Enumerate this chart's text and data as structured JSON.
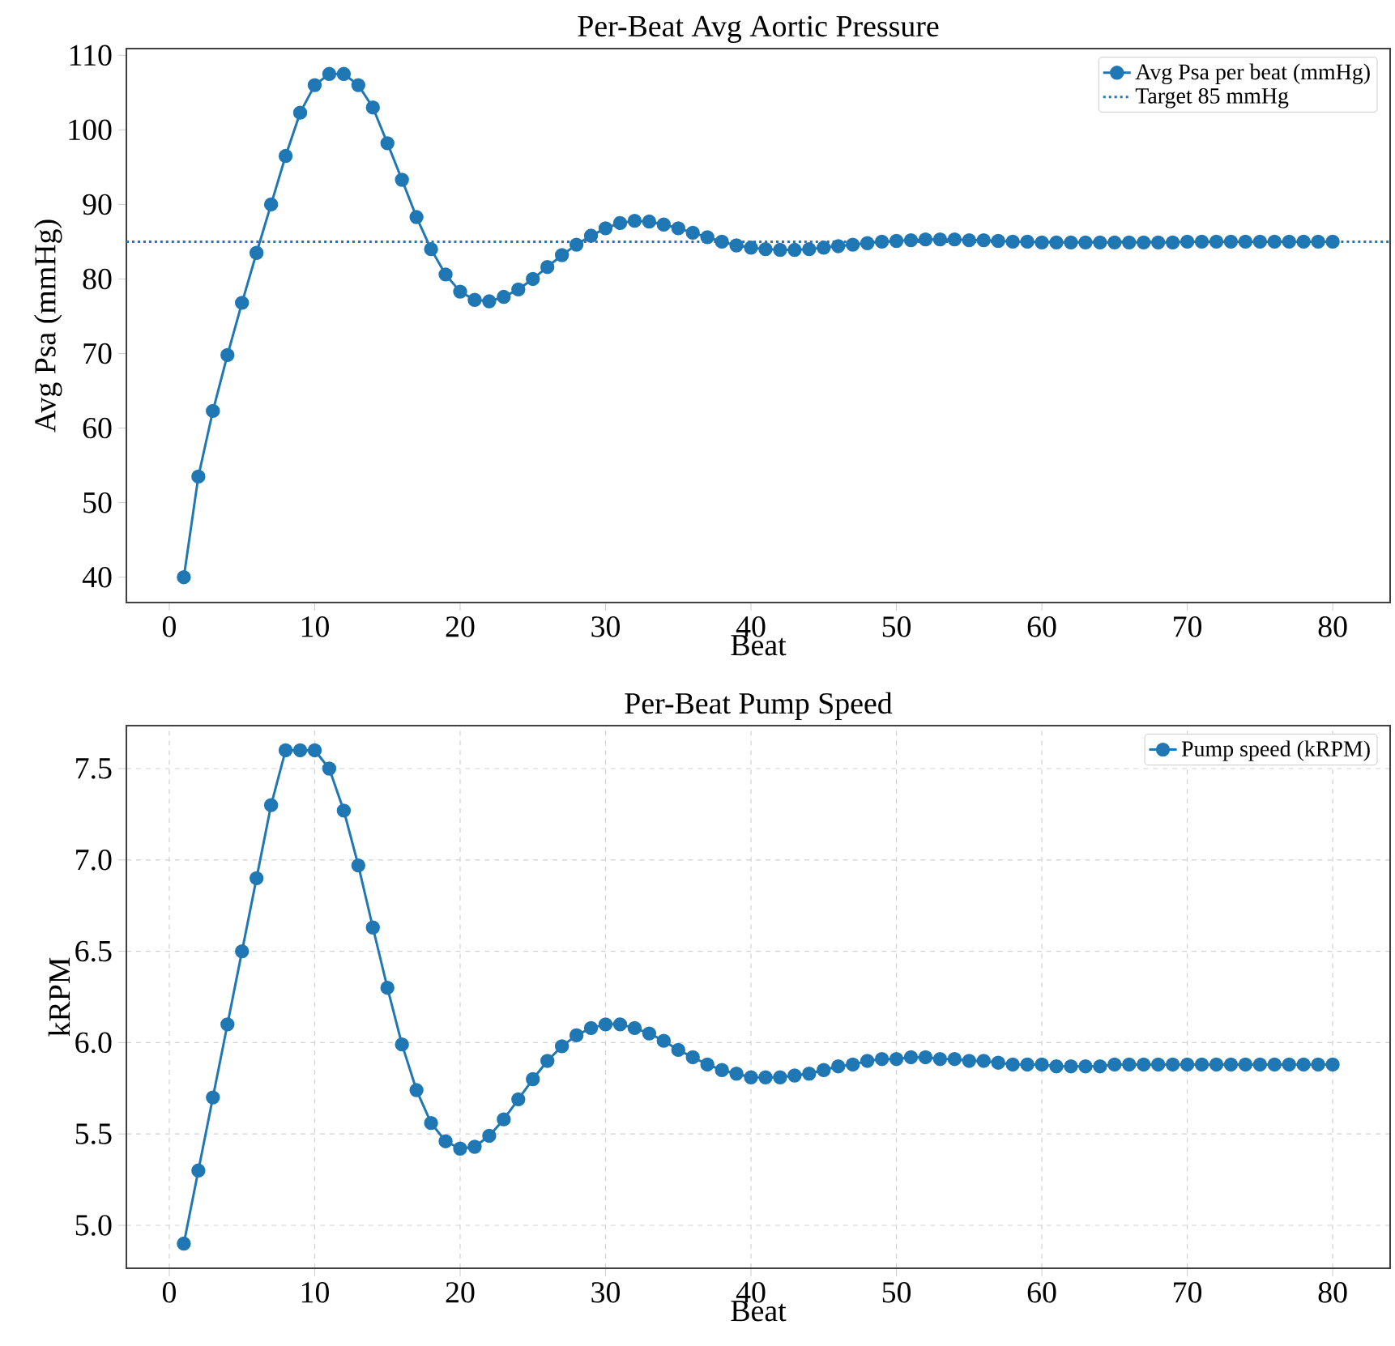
{
  "chart_data": [
    {
      "type": "line",
      "title": "Per-Beat Avg Aortic Pressure",
      "xlabel": "Beat",
      "ylabel": "Avg Psa (mmHg)",
      "x": [
        1,
        2,
        3,
        4,
        5,
        6,
        7,
        8,
        9,
        10,
        11,
        12,
        13,
        14,
        15,
        16,
        17,
        18,
        19,
        20,
        21,
        22,
        23,
        24,
        25,
        26,
        27,
        28,
        29,
        30,
        31,
        32,
        33,
        34,
        35,
        36,
        37,
        38,
        39,
        40,
        41,
        42,
        43,
        44,
        45,
        46,
        47,
        48,
        49,
        50,
        51,
        52,
        53,
        54,
        55,
        56,
        57,
        58,
        59,
        60,
        61,
        62,
        63,
        64,
        65,
        66,
        67,
        68,
        69,
        70,
        71,
        72,
        73,
        74,
        75,
        76,
        77,
        78,
        79,
        80
      ],
      "series": [
        {
          "name": "Avg Psa per beat (mmHg)",
          "color": "#1f77b4",
          "values": [
            40,
            53.5,
            62.3,
            69.8,
            76.8,
            83.5,
            90,
            96.5,
            102.3,
            106,
            107.5,
            107.5,
            106,
            103,
            98.2,
            93.3,
            88.3,
            84,
            80.6,
            78.3,
            77.2,
            77,
            77.6,
            78.6,
            80,
            81.6,
            83.2,
            84.6,
            85.8,
            86.8,
            87.5,
            87.8,
            87.7,
            87.3,
            86.8,
            86.2,
            85.6,
            85,
            84.5,
            84.2,
            84,
            83.9,
            83.9,
            84,
            84.2,
            84.4,
            84.6,
            84.8,
            85,
            85.1,
            85.2,
            85.3,
            85.3,
            85.3,
            85.2,
            85.2,
            85.1,
            85,
            85,
            84.9,
            84.9,
            84.9,
            84.9,
            84.9,
            84.9,
            84.9,
            84.9,
            84.9,
            84.9,
            85,
            85,
            85,
            85,
            85,
            85,
            85,
            85,
            85,
            85,
            85
          ]
        }
      ],
      "ref_lines": [
        {
          "axis": "y",
          "value": 85,
          "label": "Target 85 mmHg",
          "color": "#1f77b4",
          "line_style": "dotted"
        }
      ],
      "xlim": [
        -2.95,
        83.95
      ],
      "ylim": [
        36.6,
        110.9
      ],
      "xticks": [
        0,
        10,
        20,
        30,
        40,
        50,
        60,
        70,
        80
      ],
      "yticks": [
        40,
        50,
        60,
        70,
        80,
        90,
        100,
        110
      ],
      "grid": false,
      "legend": "top right",
      "marker": "circle",
      "line_style": "solid"
    },
    {
      "type": "line",
      "title": "Per-Beat Pump Speed",
      "xlabel": "Beat",
      "ylabel": "kRPM",
      "x": [
        1,
        2,
        3,
        4,
        5,
        6,
        7,
        8,
        9,
        10,
        11,
        12,
        13,
        14,
        15,
        16,
        17,
        18,
        19,
        20,
        21,
        22,
        23,
        24,
        25,
        26,
        27,
        28,
        29,
        30,
        31,
        32,
        33,
        34,
        35,
        36,
        37,
        38,
        39,
        40,
        41,
        42,
        43,
        44,
        45,
        46,
        47,
        48,
        49,
        50,
        51,
        52,
        53,
        54,
        55,
        56,
        57,
        58,
        59,
        60,
        61,
        62,
        63,
        64,
        65,
        66,
        67,
        68,
        69,
        70,
        71,
        72,
        73,
        74,
        75,
        76,
        77,
        78,
        79,
        80
      ],
      "series": [
        {
          "name": "Pump speed (kRPM)",
          "color": "#1f77b4",
          "values": [
            4.9,
            5.3,
            5.7,
            6.1,
            6.5,
            6.9,
            7.3,
            7.6,
            7.6,
            7.6,
            7.5,
            7.27,
            6.97,
            6.63,
            6.3,
            5.99,
            5.74,
            5.56,
            5.46,
            5.42,
            5.43,
            5.49,
            5.58,
            5.69,
            5.8,
            5.9,
            5.98,
            6.04,
            6.08,
            6.1,
            6.1,
            6.08,
            6.05,
            6.01,
            5.96,
            5.92,
            5.88,
            5.85,
            5.83,
            5.81,
            5.81,
            5.81,
            5.82,
            5.83,
            5.85,
            5.87,
            5.88,
            5.9,
            5.91,
            5.91,
            5.92,
            5.92,
            5.91,
            5.91,
            5.9,
            5.9,
            5.89,
            5.88,
            5.88,
            5.88,
            5.87,
            5.87,
            5.87,
            5.87,
            5.88,
            5.88,
            5.88,
            5.88,
            5.88,
            5.88,
            5.88,
            5.88,
            5.88,
            5.88,
            5.88,
            5.88,
            5.88,
            5.88,
            5.88,
            5.88
          ]
        }
      ],
      "xlim": [
        -2.95,
        83.95
      ],
      "ylim": [
        4.765,
        7.735
      ],
      "xticks": [
        0,
        10,
        20,
        30,
        40,
        50,
        60,
        70,
        80
      ],
      "yticks": [
        {
          "value": 5,
          "label": "5.0"
        },
        {
          "value": 5.5,
          "label": "5.5"
        },
        {
          "value": 6,
          "label": "6.0"
        },
        {
          "value": 6.5,
          "label": "6.5"
        },
        {
          "value": 7,
          "label": "7.0"
        },
        {
          "value": 7.5,
          "label": "7.5"
        }
      ],
      "grid": true,
      "legend": "top right",
      "marker": "circle",
      "line_style": "solid"
    }
  ]
}
